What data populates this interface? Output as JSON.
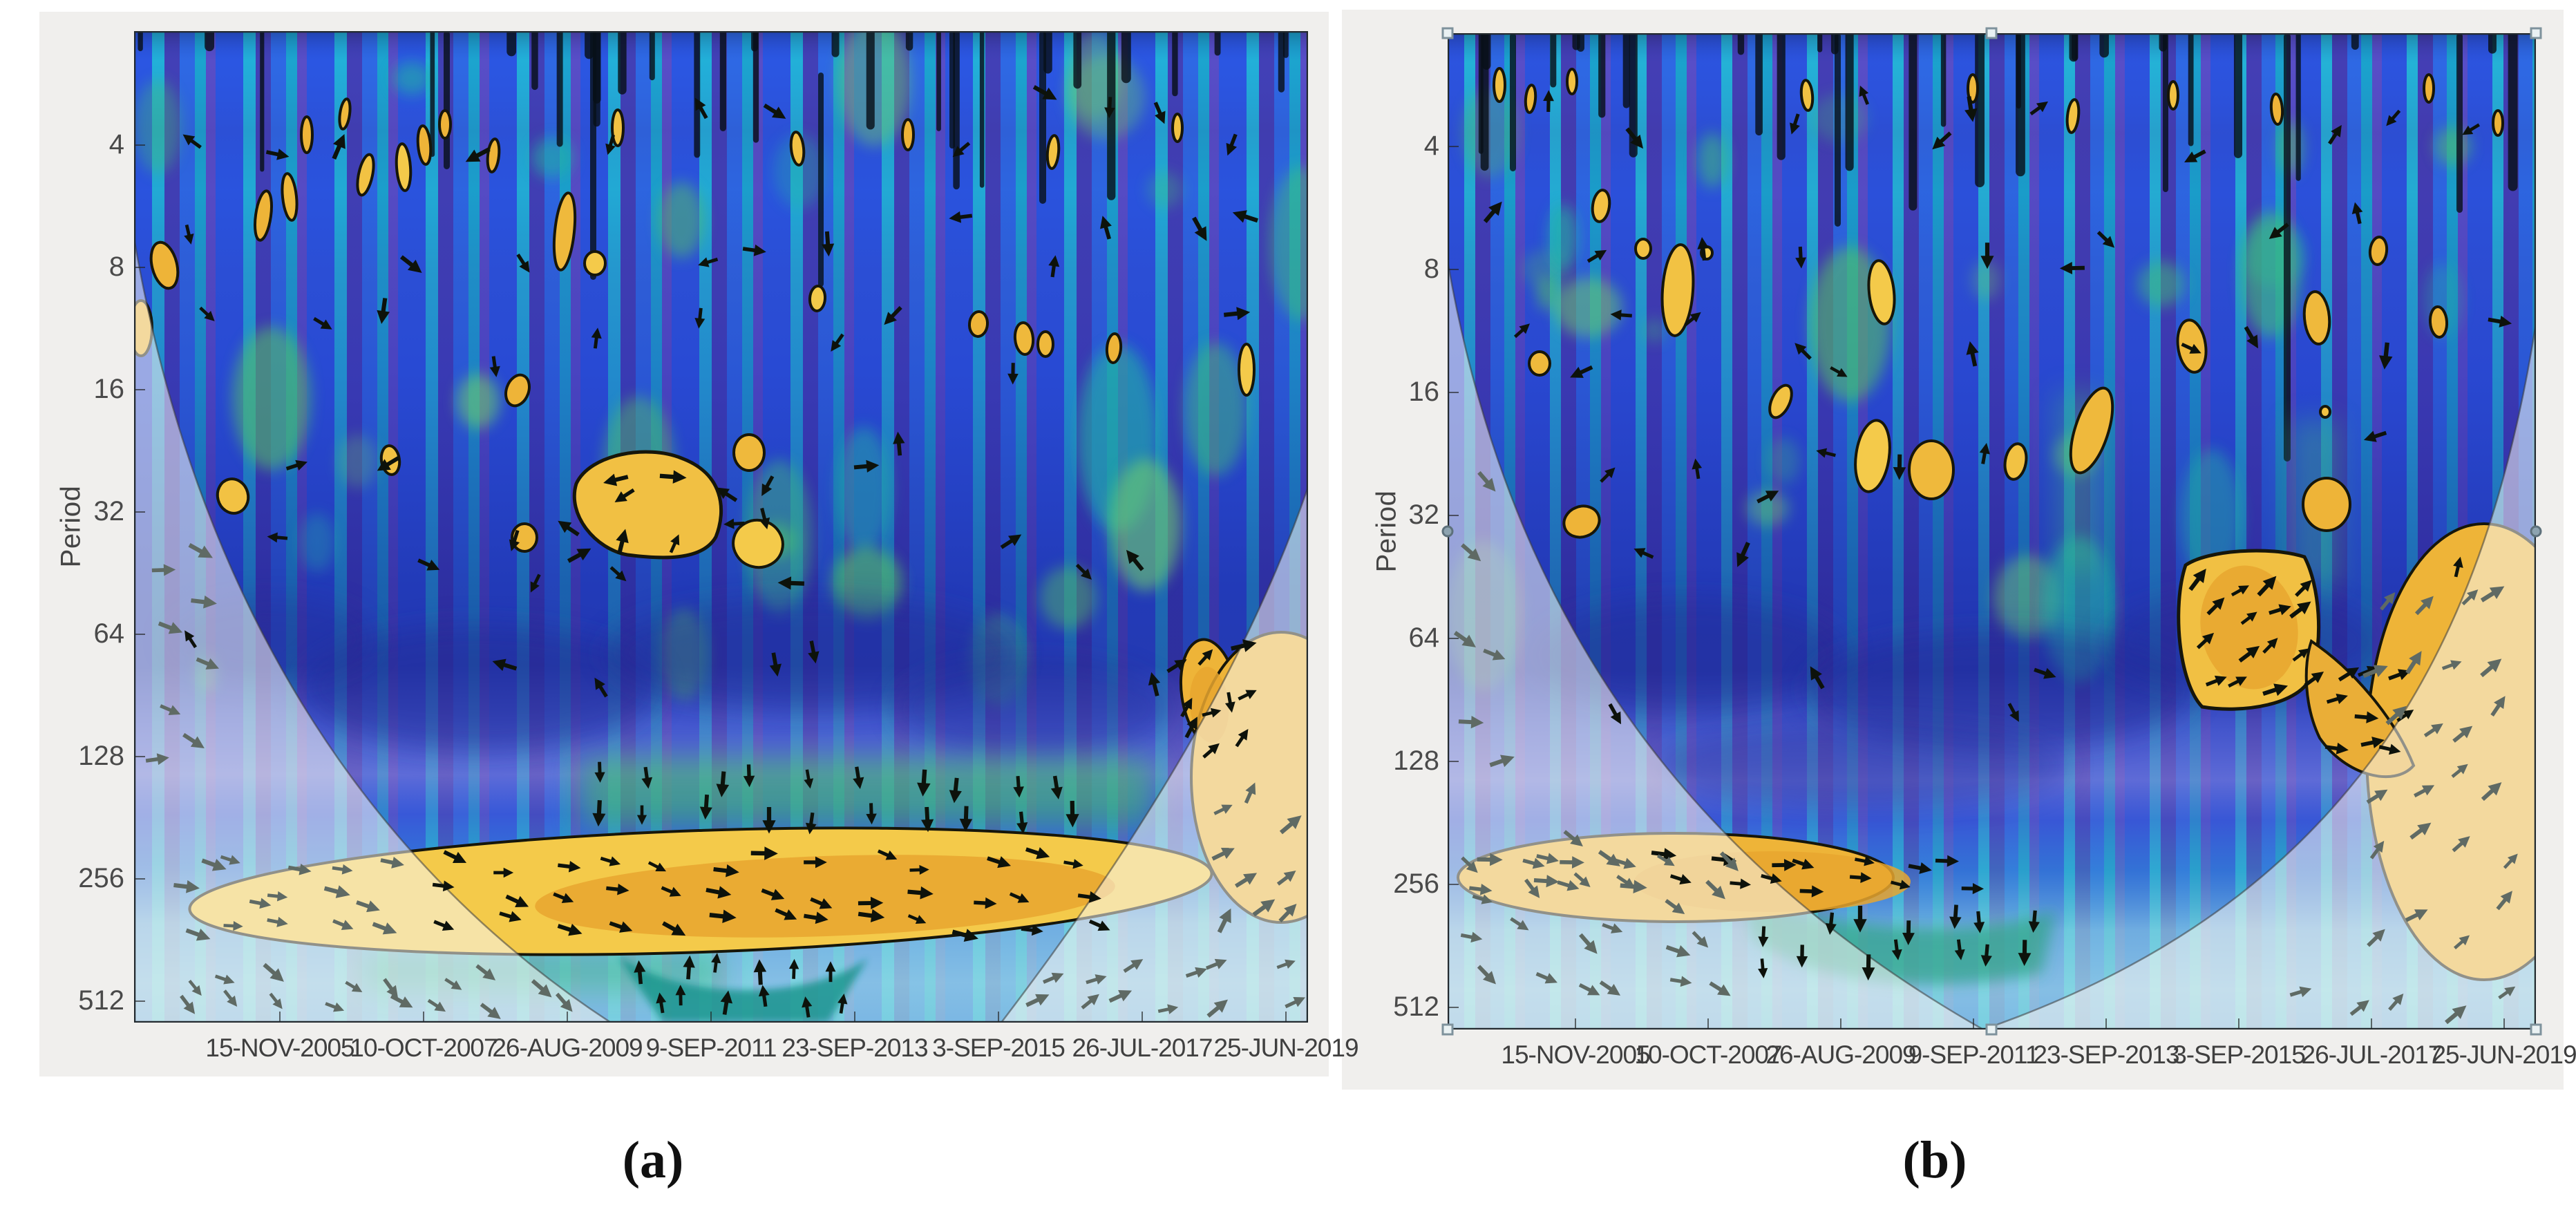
{
  "figures": [
    {
      "id": "a",
      "caption": "(a)",
      "ylabel": "Period",
      "period_ticks": [
        "4",
        "8",
        "16",
        "32",
        "64",
        "128",
        "256",
        "512"
      ],
      "date_ticks": [
        "15-NOV-2005",
        "10-OCT-2007",
        "26-AUG-2009",
        "9-SEP-2011",
        "23-SEP-2013",
        "3-SEP-2015",
        "26-JUL-2017",
        "25-JUN-2019"
      ]
    },
    {
      "id": "b",
      "caption": "(b)",
      "ylabel": "Period",
      "period_ticks": [
        "4",
        "8",
        "16",
        "32",
        "64",
        "128",
        "256",
        "512"
      ],
      "date_ticks": [
        "15-NOV-2005",
        "10-OCT-2007",
        "26-AUG-2009",
        "9-SEP-2011",
        "23-SEP-2013",
        "3-SEP-2015",
        "26-JUL-2017",
        "25-JUN-2019"
      ]
    }
  ],
  "chart_data": [
    {
      "type": "heatmap",
      "subtype": "wavelet_coherence",
      "panel": "a",
      "title": "",
      "xlabel": "",
      "ylabel": "Period",
      "y_scale": "log2",
      "y_ticks": [
        4,
        8,
        16,
        32,
        64,
        128,
        256,
        512
      ],
      "x_ticks": [
        "15-NOV-2005",
        "10-OCT-2007",
        "26-AUG-2009",
        "9-SEP-2011",
        "23-SEP-2013",
        "3-SEP-2015",
        "26-JUL-2017",
        "25-JUN-2019"
      ],
      "colormap": "parula-like: dark blue/indigo = low, cyan/green = mid, yellow-orange = high coherence",
      "overlays": [
        "black phase arrows inside cone of influence",
        "gray phase arrows in lightened region outside cone of influence",
        "black contours enclosing significant high-coherence regions",
        "cone of influence shown as washed-out shading toward lower corners"
      ],
      "high_coherence_regions": [
        {
          "period": "~180-360",
          "time": "~15-NOV-2005 to 23-SEP-2013",
          "note": "large elongated yellow band, arrows mostly right / down-right"
        },
        {
          "period": "~24-44",
          "time": "~2009-2012",
          "note": "irregular yellow island with nearby small blobs"
        },
        {
          "period": "~55-110",
          "time": "~2017-2019 near right edge",
          "note": "yellow patch with up-right arrows"
        },
        {
          "period": "~2-16",
          "time": "scattered through sample",
          "note": "many small short-lived yellow patches"
        }
      ]
    },
    {
      "type": "heatmap",
      "subtype": "wavelet_coherence",
      "panel": "b",
      "title": "",
      "xlabel": "",
      "ylabel": "Period",
      "y_scale": "log2",
      "y_ticks": [
        4,
        8,
        16,
        32,
        64,
        128,
        256,
        512
      ],
      "x_ticks": [
        "15-NOV-2005",
        "10-OCT-2007",
        "26-AUG-2009",
        "9-SEP-2011",
        "23-SEP-2013",
        "3-SEP-2015",
        "26-JUL-2017",
        "25-JUN-2019"
      ],
      "colormap": "parula-like: dark blue/indigo = low, cyan/green = mid, yellow-orange = high coherence",
      "overlays": [
        "black phase arrows inside cone of influence",
        "gray phase arrows in lightened region outside cone of influence",
        "black contours enclosing significant high-coherence regions",
        "cone of influence shown as washed-out shading toward lower corners",
        "teal selection handles on axes corners and edge midpoints (panel selected)"
      ],
      "high_coherence_regions": [
        {
          "period": "~220-300",
          "time": "~2006 to 2011",
          "note": "yellow band with tail-shaped black contour, rightward arrows"
        },
        {
          "period": "~45-95",
          "time": "~2015-2017",
          "note": "quadrilateral yellow patch with lobe trailing to right edge"
        },
        {
          "period": "~2-24",
          "time": "scattered through sample",
          "note": "many small yellow blobs"
        }
      ]
    }
  ]
}
